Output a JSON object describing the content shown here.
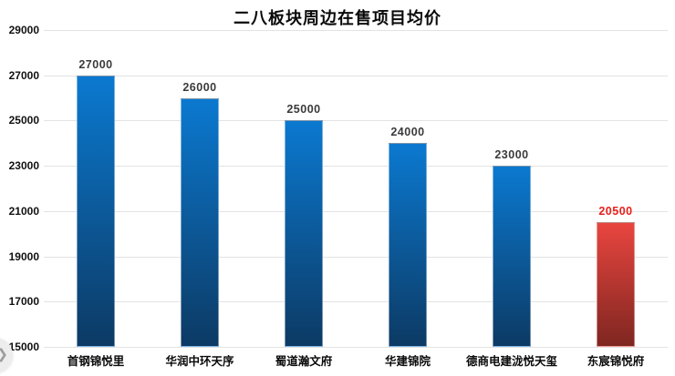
{
  "chart_data": {
    "type": "bar",
    "title": "二八板块周边在售项目均价",
    "categories": [
      "首钢锦悦里",
      "华润中环天序",
      "蜀道瀚文府",
      "华建锦院",
      "德商电建泷悦天玺",
      "东宸锦悦府"
    ],
    "values": [
      27000,
      26000,
      25000,
      24000,
      23000,
      20500
    ],
    "data_labels": [
      "27000",
      "26000",
      "25000",
      "24000",
      "23000",
      "20500"
    ],
    "highlight_index": 5,
    "ylim": [
      15000,
      29000
    ],
    "yticks": [
      29000,
      27000,
      25000,
      23000,
      21000,
      19000,
      17000,
      15000
    ],
    "xlabel": "",
    "ylabel": "",
    "grid": true,
    "legend": false
  },
  "colors": {
    "bar_top": "#0b79d0",
    "bar_bottom": "#0c3a64",
    "bar_highlight_top": "#e9453f",
    "bar_highlight_bottom": "#7f2620",
    "value_label": "#3a3a3a",
    "value_label_highlight": "#e8201a",
    "gridline": "#e3e3e3",
    "axis_text": "#111111"
  },
  "overlay": {
    "next_icon": "❯"
  }
}
